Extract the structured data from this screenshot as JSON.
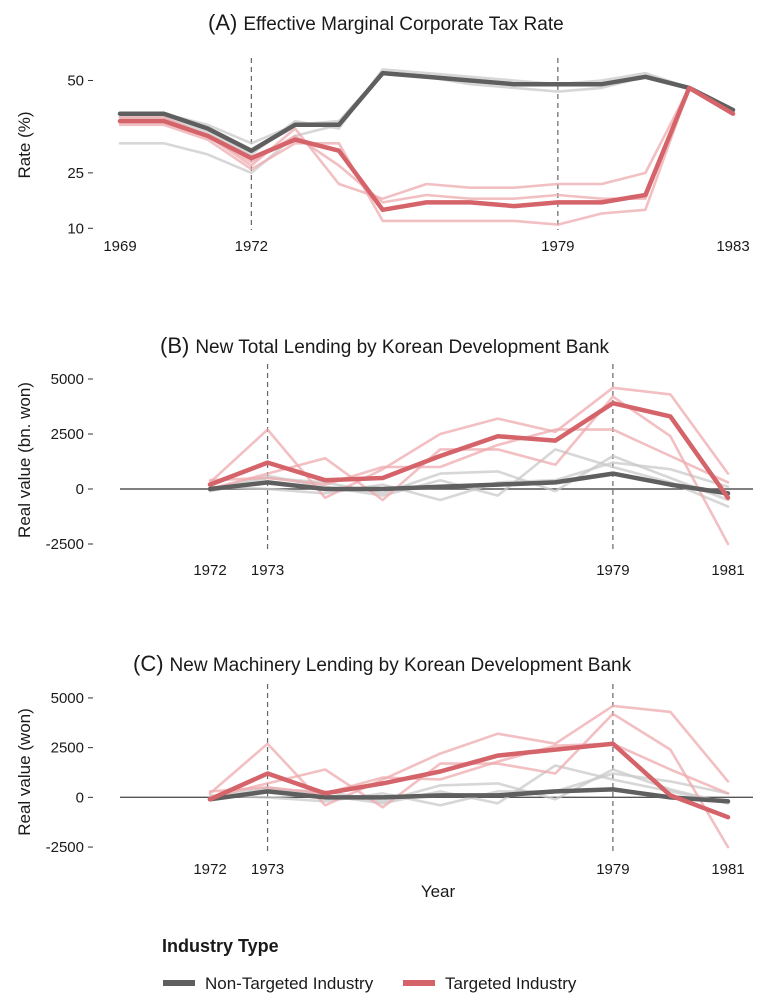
{
  "colors": {
    "non_targeted": "#5f5f5f",
    "non_targeted_light": "#c9c9c9",
    "targeted": "#d4646a",
    "targeted_light": "#eeaaae",
    "zero_line": "#555555",
    "event_line": "#666666"
  },
  "legend": {
    "title": "Industry Type",
    "items": [
      {
        "key": "non_targeted",
        "label": "Non-Targeted Industry"
      },
      {
        "key": "targeted",
        "label": "Targeted Industry"
      }
    ]
  },
  "chart_data": [
    {
      "id": "A",
      "type": "line",
      "letter": "(A)",
      "title": "Effective Marginal Corporate Tax Rate",
      "xlabel": "",
      "ylabel": "Rate (%)",
      "xlim": [
        1969,
        1983
      ],
      "ylim": [
        9,
        55
      ],
      "yticks": [
        10,
        25,
        50
      ],
      "xtick_labels": [
        1969,
        1972,
        1979,
        1983
      ],
      "event_lines": [
        1972,
        1979
      ],
      "zero_line": false,
      "x": [
        1969,
        1970,
        1971,
        1972,
        1973,
        1974,
        1975,
        1976,
        1977,
        1978,
        1979,
        1980,
        1981,
        1982,
        1983
      ],
      "series": [
        {
          "name": "Non-Targeted Industry",
          "group": "non_targeted",
          "main": true,
          "values": [
            41,
            41,
            37,
            31,
            38,
            38,
            52,
            51,
            50,
            49,
            49,
            49,
            51,
            48,
            42
          ]
        },
        {
          "name": "Non-Targeted Industry",
          "group": "non_targeted",
          "main": false,
          "values": [
            40,
            40,
            36,
            30,
            39,
            37,
            53,
            52,
            51,
            50,
            49,
            50,
            52,
            48,
            42
          ]
        },
        {
          "name": "Non-Targeted Industry",
          "group": "non_targeted",
          "main": false,
          "values": [
            33,
            33,
            30,
            25,
            35,
            38,
            52,
            51,
            49,
            48,
            47,
            48,
            51,
            48,
            42
          ]
        },
        {
          "name": "Non-Targeted Industry",
          "group": "non_targeted",
          "main": false,
          "values": [
            41,
            41,
            38,
            33,
            38,
            39,
            52,
            51,
            50,
            49,
            49,
            49,
            51,
            48,
            42
          ]
        },
        {
          "name": "Targeted Industry",
          "group": "targeted",
          "main": true,
          "values": [
            39,
            39,
            35,
            29,
            34,
            31,
            15,
            17,
            17,
            16,
            17,
            17,
            19,
            48,
            41
          ]
        },
        {
          "name": "Targeted Industry",
          "group": "targeted",
          "main": false,
          "values": [
            40,
            40,
            35,
            27,
            37,
            22,
            18,
            22,
            21,
            21,
            22,
            22,
            25,
            48,
            41
          ]
        },
        {
          "name": "Targeted Industry",
          "group": "targeted",
          "main": false,
          "values": [
            38,
            38,
            34,
            26,
            33,
            33,
            12,
            12,
            12,
            12,
            11,
            14,
            15,
            48,
            41
          ]
        },
        {
          "name": "Targeted Industry",
          "group": "targeted",
          "main": false,
          "values": [
            39,
            39,
            35,
            28,
            35,
            27,
            17,
            19,
            18,
            18,
            19,
            18,
            18,
            48,
            41
          ]
        }
      ]
    },
    {
      "id": "B",
      "type": "line",
      "letter": "(B)",
      "title": "New Total Lending by Korean Development Bank",
      "xlabel": "",
      "ylabel": "Real value (bn. won)",
      "xlim": [
        1972,
        1981
      ],
      "ylim": [
        -3000,
        5500
      ],
      "yticks": [
        -2500,
        0,
        2500,
        5000
      ],
      "xtick_labels": [
        1972,
        1973,
        1979,
        1981
      ],
      "event_lines": [
        1973,
        1979
      ],
      "zero_line": true,
      "x": [
        1972,
        1973,
        1974,
        1975,
        1976,
        1977,
        1978,
        1979,
        1980,
        1981
      ],
      "series": [
        {
          "name": "Non-Targeted Industry",
          "group": "non_targeted",
          "main": true,
          "values": [
            0,
            300,
            0,
            0,
            100,
            200,
            300,
            700,
            200,
            -200
          ]
        },
        {
          "name": "Non-Targeted Industry",
          "group": "non_targeted",
          "main": false,
          "values": [
            -100,
            500,
            300,
            -200,
            700,
            800,
            -100,
            1500,
            500,
            -500
          ]
        },
        {
          "name": "Non-Targeted Industry",
          "group": "non_targeted",
          "main": false,
          "values": [
            100,
            0,
            -200,
            200,
            -500,
            300,
            400,
            1200,
            900,
            100
          ]
        },
        {
          "name": "Non-Targeted Industry",
          "group": "non_targeted",
          "main": false,
          "values": [
            0,
            600,
            100,
            -300,
            400,
            -300,
            1800,
            1000,
            300,
            -800
          ]
        },
        {
          "name": "Targeted Industry",
          "group": "targeted",
          "main": true,
          "values": [
            200,
            1200,
            400,
            500,
            1500,
            2400,
            2200,
            3900,
            3300,
            -400
          ]
        },
        {
          "name": "Targeted Industry",
          "group": "targeted",
          "main": false,
          "values": [
            300,
            2700,
            -400,
            900,
            2500,
            3200,
            2600,
            4600,
            4300,
            700
          ]
        },
        {
          "name": "Targeted Industry",
          "group": "targeted",
          "main": false,
          "values": [
            0,
            700,
            1400,
            -500,
            1800,
            1800,
            1100,
            4200,
            2400,
            -2500
          ]
        },
        {
          "name": "Targeted Industry",
          "group": "targeted",
          "main": false,
          "values": [
            400,
            500,
            200,
            1000,
            1000,
            2000,
            2700,
            2700,
            1500,
            300
          ]
        }
      ]
    },
    {
      "id": "C",
      "type": "line",
      "letter": "(C)",
      "title": "New Machinery Lending by Korean Development Bank",
      "xlabel": "Year",
      "ylabel": "Real value (won)",
      "xlim": [
        1972,
        1981
      ],
      "ylim": [
        -3000,
        5500
      ],
      "yticks": [
        -2500,
        0,
        2500,
        5000
      ],
      "xtick_labels": [
        1972,
        1973,
        1979,
        1981
      ],
      "event_lines": [
        1973,
        1979
      ],
      "zero_line": true,
      "x": [
        1972,
        1973,
        1974,
        1975,
        1976,
        1977,
        1978,
        1979,
        1980,
        1981
      ],
      "series": [
        {
          "name": "Non-Targeted Industry",
          "group": "non_targeted",
          "main": true,
          "values": [
            -100,
            300,
            0,
            0,
            100,
            100,
            300,
            400,
            0,
            -200
          ]
        },
        {
          "name": "Non-Targeted Industry",
          "group": "non_targeted",
          "main": false,
          "values": [
            -100,
            400,
            300,
            -200,
            600,
            700,
            -100,
            1400,
            400,
            -300
          ]
        },
        {
          "name": "Non-Targeted Industry",
          "group": "non_targeted",
          "main": false,
          "values": [
            100,
            0,
            -200,
            200,
            -400,
            300,
            300,
            1200,
            800,
            200
          ]
        },
        {
          "name": "Non-Targeted Industry",
          "group": "non_targeted",
          "main": false,
          "values": [
            0,
            500,
            100,
            -300,
            300,
            -300,
            1600,
            900,
            300,
            -300
          ]
        },
        {
          "name": "Targeted Industry",
          "group": "targeted",
          "main": true,
          "values": [
            -100,
            1200,
            200,
            700,
            1300,
            2100,
            2400,
            2700,
            100,
            -1000
          ]
        },
        {
          "name": "Targeted Industry",
          "group": "targeted",
          "main": false,
          "values": [
            200,
            2700,
            -400,
            900,
            2200,
            3200,
            2700,
            4600,
            4300,
            800
          ]
        },
        {
          "name": "Targeted Industry",
          "group": "targeted",
          "main": false,
          "values": [
            0,
            700,
            1400,
            -500,
            1700,
            1700,
            1200,
            4200,
            2400,
            -2500
          ]
        },
        {
          "name": "Targeted Industry",
          "group": "targeted",
          "main": false,
          "values": [
            300,
            500,
            200,
            1000,
            900,
            1800,
            2600,
            2700,
            1400,
            200
          ]
        }
      ]
    }
  ]
}
